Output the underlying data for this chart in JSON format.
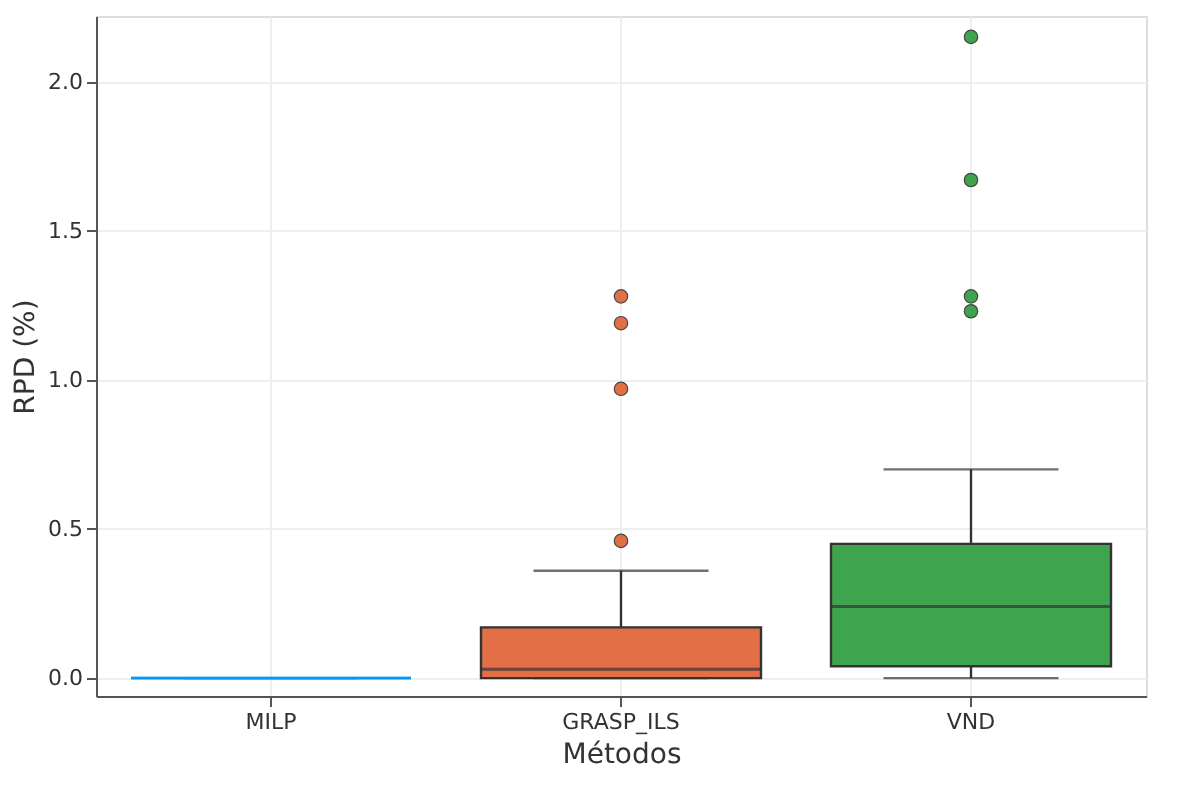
{
  "chart_data": {
    "type": "box",
    "xlabel": "Métodos",
    "ylabel": "RPD (%)",
    "categories": [
      "MILP",
      "GRASP_ILS",
      "VND"
    ],
    "colors": [
      "#009afa",
      "#e36f47",
      "#3ea44e"
    ],
    "boxes": [
      {
        "low": 0,
        "q1": 0,
        "median": 0,
        "q3": 0,
        "high": 0
      },
      {
        "low": 0,
        "q1": 0,
        "median": 0.03,
        "q3": 0.17,
        "high": 0.36,
        "outliers": [
          0.46,
          0.97,
          1.19,
          1.28
        ]
      },
      {
        "low": 0,
        "q1": 0.04,
        "median": 0.24,
        "q3": 0.45,
        "high": 0.7,
        "outliers": [
          1.23,
          1.28,
          1.67,
          2.15
        ]
      }
    ],
    "ylim": [
      -0.06,
      2.22
    ],
    "yticks": [
      {
        "value": 0,
        "label": "0.0"
      },
      0.5,
      {
        "value": 1,
        "label": "1.0"
      },
      1.5,
      {
        "value": 2,
        "label": "2.0"
      }
    ],
    "grid": true
  }
}
